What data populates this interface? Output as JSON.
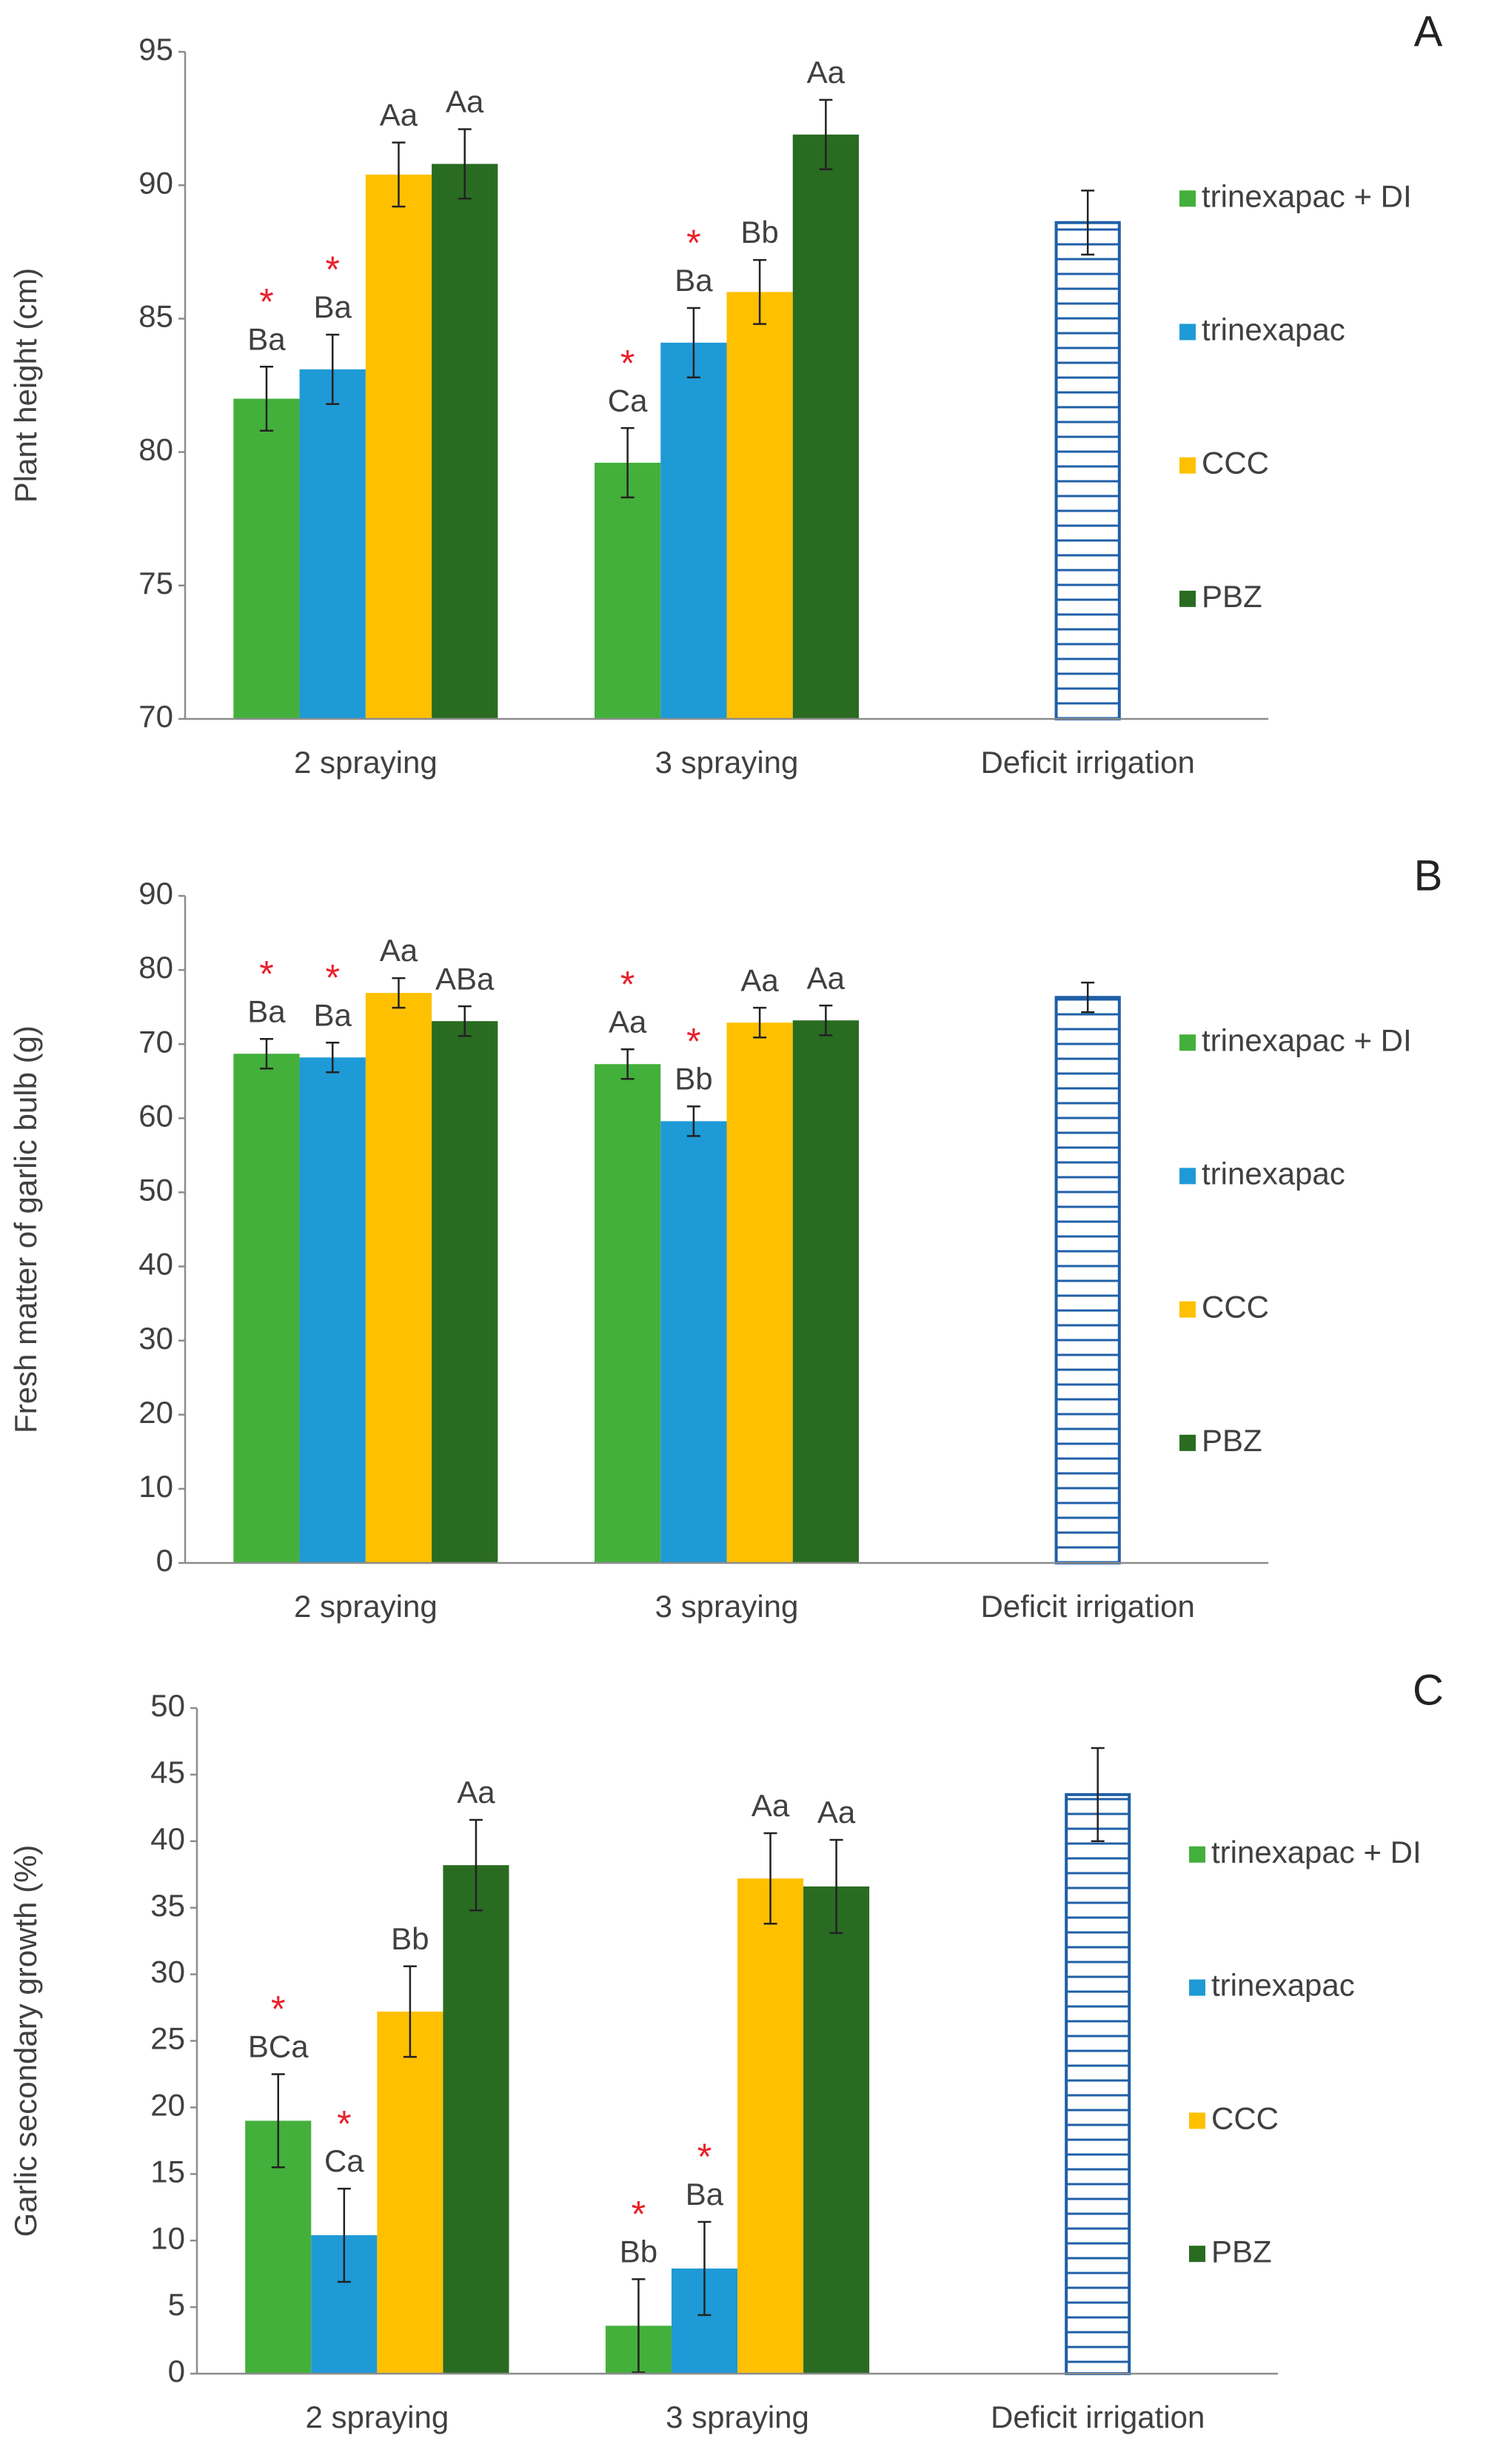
{
  "chart_data": [
    {
      "type": "bar",
      "panel": "A",
      "ylabel": "Plant height (cm)",
      "asterisk": "*",
      "categories": [
        "2 spraying",
        "3 spraying",
        "Deficit irrigation"
      ],
      "ylim": [
        70,
        95
      ],
      "yticks": [
        70,
        75,
        80,
        85,
        90,
        95
      ],
      "legend": "right",
      "series": [
        {
          "name": "trinexapac + DI",
          "color": "#43b03b",
          "values": [
            82.0,
            79.6,
            null
          ],
          "errors": [
            1.2,
            1.3,
            null
          ],
          "letters": [
            "Ba",
            "Ca",
            null
          ],
          "starred": [
            true,
            true,
            false
          ]
        },
        {
          "name": "trinexapac",
          "color": "#1e9ad6",
          "values": [
            83.1,
            84.1,
            null
          ],
          "errors": [
            1.3,
            1.3,
            null
          ],
          "letters": [
            "Ba",
            "Ba",
            null
          ],
          "starred": [
            true,
            true,
            false
          ]
        },
        {
          "name": "CCC",
          "color": "#ffc000",
          "values": [
            90.4,
            86.0,
            null
          ],
          "errors": [
            1.2,
            1.2,
            null
          ],
          "letters": [
            "Aa",
            "Bb",
            null
          ],
          "starred": [
            false,
            false,
            false
          ]
        },
        {
          "name": "PBZ",
          "color": "#2a6b22",
          "values": [
            90.8,
            91.9,
            null
          ],
          "errors": [
            1.3,
            1.3,
            null
          ],
          "letters": [
            "Aa",
            "Aa",
            null
          ],
          "starred": [
            false,
            false,
            false
          ]
        },
        {
          "color": "#1f5fa8",
          "hatch": true,
          "values": [
            null,
            null,
            88.6
          ],
          "errors": [
            null,
            null,
            1.2
          ]
        }
      ]
    },
    {
      "type": "bar",
      "panel": "B",
      "ylabel": "Fresh matter of garlic bulb (g)",
      "asterisk": "*",
      "categories": [
        "2 spraying",
        "3 spraying",
        "Deficit irrigation"
      ],
      "ylim": [
        0,
        90
      ],
      "yticks": [
        0,
        10,
        20,
        30,
        40,
        50,
        60,
        70,
        80,
        90
      ],
      "legend": "right",
      "series": [
        {
          "name": "trinexapac + DI",
          "color": "#43b03b",
          "values": [
            68.7,
            67.3,
            null
          ],
          "errors": [
            2.0,
            2.0,
            null
          ],
          "letters": [
            "Ba",
            "Aa",
            null
          ],
          "starred": [
            true,
            true,
            false
          ]
        },
        {
          "name": "trinexapac",
          "color": "#1e9ad6",
          "values": [
            68.2,
            59.6,
            null
          ],
          "errors": [
            2.0,
            2.0,
            null
          ],
          "letters": [
            "Ba",
            "Bb",
            null
          ],
          "starred": [
            true,
            true,
            false
          ]
        },
        {
          "name": "CCC",
          "color": "#ffc000",
          "values": [
            76.9,
            72.9,
            null
          ],
          "errors": [
            2.0,
            2.0,
            null
          ],
          "letters": [
            "Aa",
            "Aa",
            null
          ],
          "starred": [
            false,
            false,
            false
          ]
        },
        {
          "name": "PBZ",
          "color": "#2a6b22",
          "values": [
            73.1,
            73.2,
            null
          ],
          "errors": [
            2.0,
            2.0,
            null
          ],
          "letters": [
            "ABa",
            "Aa",
            null
          ],
          "starred": [
            false,
            false,
            false
          ]
        },
        {
          "color": "#1f5fa8",
          "hatch": true,
          "values": [
            null,
            null,
            76.3
          ],
          "errors": [
            null,
            null,
            2.0
          ]
        }
      ]
    },
    {
      "type": "bar",
      "panel": "C",
      "ylabel": "Garlic secondary growth (%)",
      "asterisk": "*",
      "categories": [
        "2 spraying",
        "3 spraying",
        "Deficit irrigation"
      ],
      "ylim": [
        0,
        50
      ],
      "yticks": [
        0,
        5,
        10,
        15,
        20,
        25,
        30,
        35,
        40,
        45,
        50
      ],
      "legend": "right",
      "series": [
        {
          "name": "trinexapac + DI",
          "color": "#43b03b",
          "values": [
            19.0,
            3.6,
            null
          ],
          "errors": [
            3.5,
            3.5,
            null
          ],
          "letters": [
            "BCa",
            "Bb",
            null
          ],
          "starred": [
            true,
            true,
            false
          ]
        },
        {
          "name": "trinexapac",
          "color": "#1e9ad6",
          "values": [
            10.4,
            7.9,
            null
          ],
          "errors": [
            3.5,
            3.5,
            null
          ],
          "letters": [
            "Ca",
            "Ba",
            null
          ],
          "starred": [
            true,
            true,
            false
          ]
        },
        {
          "name": "CCC",
          "color": "#ffc000",
          "values": [
            27.2,
            37.2,
            null
          ],
          "errors": [
            3.4,
            3.4,
            null
          ],
          "letters": [
            "Bb",
            "Aa",
            null
          ],
          "starred": [
            false,
            false,
            false
          ]
        },
        {
          "name": "PBZ",
          "color": "#2a6b22",
          "values": [
            38.2,
            36.6,
            null
          ],
          "errors": [
            3.4,
            3.5,
            null
          ],
          "letters": [
            "Aa",
            "Aa",
            null
          ],
          "starred": [
            false,
            false,
            false
          ]
        },
        {
          "color": "#1f5fa8",
          "hatch": true,
          "values": [
            null,
            null,
            43.5
          ],
          "errors": [
            null,
            null,
            3.5
          ]
        }
      ]
    }
  ]
}
